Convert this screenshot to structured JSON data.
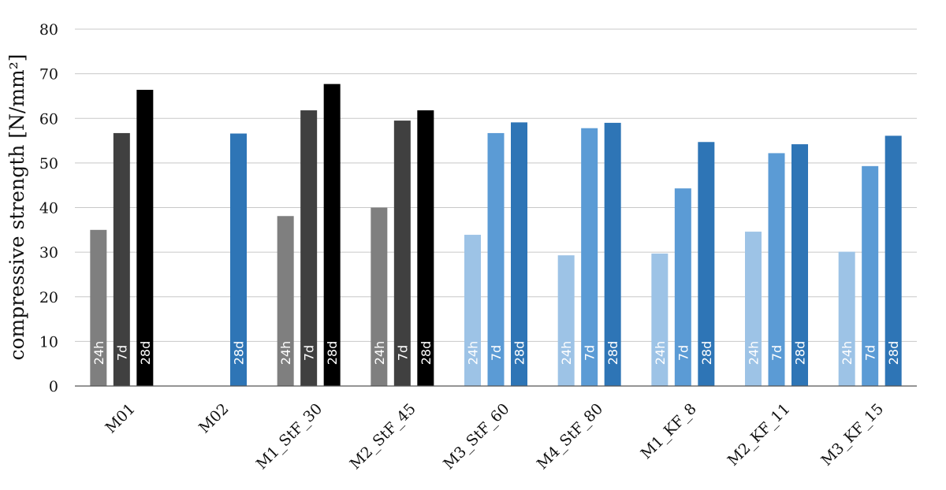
{
  "chart_data": {
    "type": "bar",
    "ylabel": "compressive strength [N/mm²]",
    "ylim": [
      0,
      80
    ],
    "yticks": [
      "0",
      "10",
      "20",
      "30",
      "40",
      "50",
      "60",
      "70",
      "80"
    ],
    "grid": true,
    "legend": "none",
    "categories": [
      "M01",
      "M02",
      "M1_StF_30",
      "M2_StF_45",
      "M3_StF_60",
      "M4_StF_80",
      "M1_KF_8",
      "M2_KF_11",
      "M3_KF_15"
    ],
    "series": [
      {
        "name": "24h",
        "values": [
          35.0,
          null,
          38.1,
          40.0,
          33.9,
          29.3,
          29.7,
          34.6,
          30.1
        ]
      },
      {
        "name": "7d",
        "values": [
          56.7,
          null,
          61.8,
          59.5,
          56.7,
          57.8,
          44.3,
          52.2,
          49.3
        ]
      },
      {
        "name": "28d",
        "values": [
          66.4,
          56.6,
          67.7,
          61.8,
          59.1,
          59.0,
          54.7,
          54.2,
          56.1
        ]
      }
    ],
    "colors": {
      "24h": [
        "#7f7f7f",
        null,
        "#7f7f7f",
        "#7f7f7f",
        "#9dc3e6",
        "#9dc3e6",
        "#9dc3e6",
        "#9dc3e6",
        "#9dc3e6"
      ],
      "7d": [
        "#404040",
        null,
        "#404040",
        "#404040",
        "#5b9bd5",
        "#5b9bd5",
        "#5b9bd5",
        "#5b9bd5",
        "#5b9bd5"
      ],
      "28d": [
        "#000000",
        "#2e75b6",
        "#000000",
        "#000000",
        "#2e75b6",
        "#2e75b6",
        "#2e75b6",
        "#2e75b6",
        "#2e75b6"
      ]
    }
  }
}
